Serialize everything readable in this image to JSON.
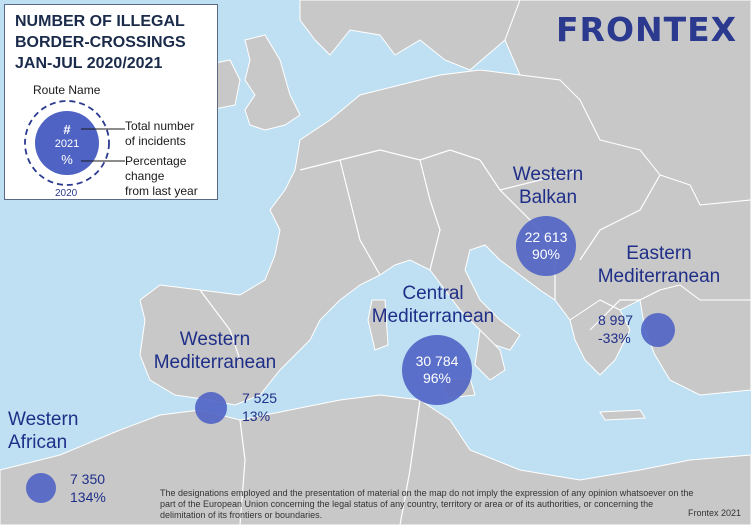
{
  "legend": {
    "title_lines": [
      "NUMBER OF ILLEGAL",
      "BORDER-CROSSINGS",
      "JAN-JUL 2020/2021"
    ],
    "route_label": "Route Name",
    "symbol_hash": "#",
    "symbol_year": "2021",
    "symbol_pct": "%",
    "total_label_1": "Total number",
    "total_label_2": "of incidents",
    "pct_label_1": "Percentage change",
    "pct_label_2": "from last year",
    "year_2020": "2020"
  },
  "brand": {
    "name": "FRONTEX",
    "logo_icon": "frontex-wordmark"
  },
  "routes": {
    "western_balkan": {
      "name_1": "Western",
      "name_2": "Balkan",
      "total": "22 613",
      "change": "90%",
      "total_2021": 22613,
      "change_pct": 90
    },
    "eastern_med": {
      "name_1": "Eastern",
      "name_2": "Mediterranean",
      "total": "8 997",
      "change": "-33%",
      "total_2021": 8997,
      "change_pct": -33
    },
    "central_med": {
      "name_1": "Central",
      "name_2": "Mediterranean",
      "total": "30 784",
      "change": "96%",
      "total_2021": 30784,
      "change_pct": 96
    },
    "western_med": {
      "name_1": "Western",
      "name_2": "Mediterranean",
      "total": "7 525",
      "change": "13%",
      "total_2021": 7525,
      "change_pct": 13
    },
    "western_african": {
      "name_1": "Western",
      "name_2": "African",
      "total": "7 350",
      "change": "134%",
      "total_2021": 7350,
      "change_pct": 134
    }
  },
  "footer": {
    "disclaimer": "The designations employed and the presentation of material on the map do not imply the expression of any opinion whatsoever on the part of the European Union concerning the legal status of any country, territory or area or of its authorities, or concerning the delimitation of its frontiers or boundaries.",
    "credit": "Frontex 2021"
  },
  "colors": {
    "sea": "#bfe0f2",
    "land": "#c8c8c8",
    "border": "#ffffff",
    "bubble": "#4f63c4",
    "text_blue": "#1f2f88"
  }
}
